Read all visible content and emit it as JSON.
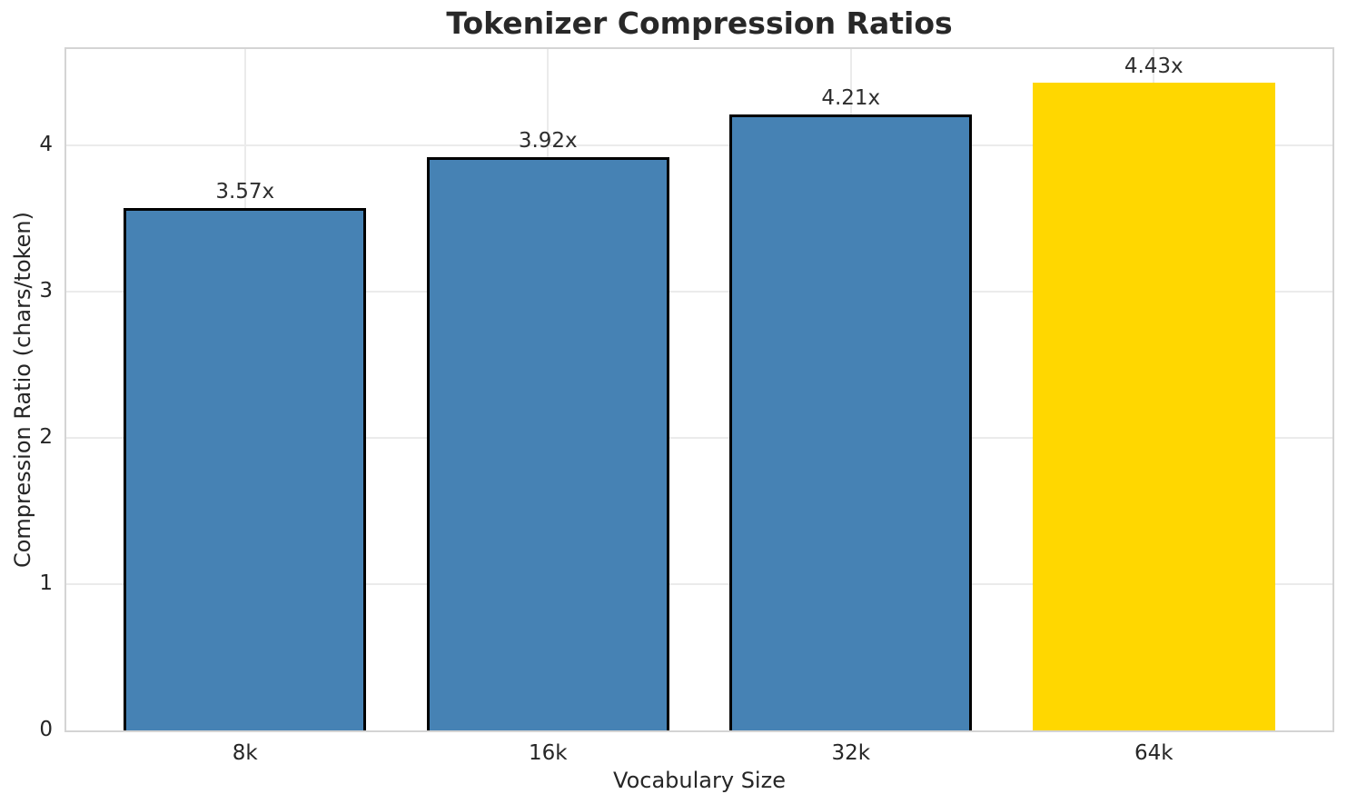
{
  "chart_data": {
    "type": "bar",
    "title": "Tokenizer Compression Ratios",
    "xlabel": "Vocabulary Size",
    "ylabel": "Compression Ratio (chars/token)",
    "categories": [
      "8k",
      "16k",
      "32k",
      "64k"
    ],
    "values": [
      3.57,
      3.92,
      4.21,
      4.43
    ],
    "bar_labels": [
      "3.57x",
      "3.92x",
      "4.21x",
      "4.43x"
    ],
    "bar_colors": [
      "#4682B4",
      "#4682B4",
      "#4682B4",
      "#FFD700"
    ],
    "bar_edge_colors": [
      "#000000",
      "#000000",
      "#000000",
      "none"
    ],
    "yticks": [
      "0",
      "1",
      "2",
      "3",
      "4"
    ],
    "ytick_values": [
      0,
      1,
      2,
      3,
      4
    ],
    "ylim": [
      0,
      4.66
    ],
    "bar_width_fraction": 0.8,
    "grid": true,
    "legend_position": "none",
    "highlight_color": "#FFD700",
    "base_color": "#4682B4",
    "grid_color": "#ebebeb",
    "spine_color": "#d4d4d4",
    "text_color": "#262626"
  }
}
